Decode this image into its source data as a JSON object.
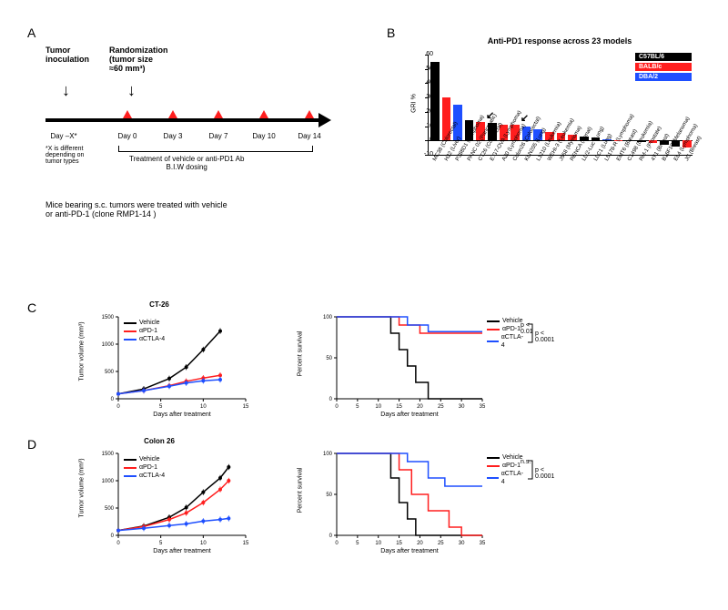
{
  "panelA": {
    "label": "A",
    "tumor_inoc": "Tumor\ninoculation",
    "randomization": "Randomization\n(tumor size\n≈60 mm³)",
    "days": [
      "Day –X*",
      "Day 0",
      "Day 3",
      "Day 7",
      "Day 10",
      "Day 14"
    ],
    "footnote": "*X is different\ndepending on\ntumor types",
    "treatment_text": "Treatment of vehicle or anti-PD1 Ab\nB.I.W dosing",
    "caption": "Mice bearing s.c. tumors were treated with vehicle\nor anti-PD-1 (clone RMP1-14 )"
  },
  "panelB": {
    "label": "B",
    "title": "Anti-PD1 response across 23 models",
    "ylabel": "GRI %",
    "ylim": [
      -10,
      60
    ],
    "ytick_step": 10,
    "legend": [
      {
        "label": "C57BL/6",
        "color": "#000000"
      },
      {
        "label": "BALB/c",
        "color": "#ff1e1e"
      },
      {
        "label": "DBA/2",
        "color": "#1e4fff"
      }
    ],
    "bars": [
      {
        "label": "MC38 (Colorectal)",
        "value": 55,
        "color": "#000000"
      },
      {
        "label": "H22 (Liver)",
        "value": 30,
        "color": "#ff1e1e"
      },
      {
        "label": "P388D1 (Lymphoma)",
        "value": 25,
        "color": "#1e4fff"
      },
      {
        "label": "PANC 02 (Pancreatic)",
        "value": 14,
        "color": "#000000"
      },
      {
        "label": "CT26 (Colorectal)",
        "value": 13,
        "color": "#ff1e1e",
        "arrow": true
      },
      {
        "label": "E.G7-OVA (Lymphoma)",
        "value": 12,
        "color": "#000000"
      },
      {
        "label": "A20 (Lymphoma)",
        "value": 11,
        "color": "#ff1e1e"
      },
      {
        "label": "Colon26 (Colorectal)",
        "value": 11,
        "color": "#ff1e1e",
        "arrow": true
      },
      {
        "label": "KLN205 (Lung)",
        "value": 10,
        "color": "#1e4fff"
      },
      {
        "label": "L1210 (Leukemia)",
        "value": 8,
        "color": "#1e4fff"
      },
      {
        "label": "WEHI-3 (Leukemia)",
        "value": 6,
        "color": "#ff1e1e"
      },
      {
        "label": "J558 (Myeloma)",
        "value": 5,
        "color": "#ff1e1e"
      },
      {
        "label": "RENCA (Renal)",
        "value": 4,
        "color": "#ff1e1e"
      },
      {
        "label": "LL/2-Luc (Lung)",
        "value": 3,
        "color": "#000000"
      },
      {
        "label": "LLC1 (Lung)",
        "value": 2,
        "color": "#000000"
      },
      {
        "label": "L5178-R (Lymphoma)",
        "value": 1,
        "color": "#1e4fff"
      },
      {
        "label": "EMT6 (Breast)",
        "value": 0.5,
        "color": "#ff1e1e"
      },
      {
        "label": "C1498 (Leukemia)",
        "value": 0,
        "color": "#000000"
      },
      {
        "label": "RM-1 (Prostate)",
        "value": -1,
        "color": "#000000"
      },
      {
        "label": "4T1 (Breast)",
        "value": -1.5,
        "color": "#ff1e1e"
      },
      {
        "label": "B16F10 (Melanoma)",
        "value": -3,
        "color": "#000000"
      },
      {
        "label": "EL4 (Lymphoma)",
        "value": -4,
        "color": "#000000"
      },
      {
        "label": "JC (Breast)",
        "value": -5,
        "color": "#ff1e1e"
      }
    ]
  },
  "panelC": {
    "label": "C",
    "title": "CT-26",
    "growth": {
      "ylabel": "Tumor volume (mm³)",
      "xlabel": "Days after treatment",
      "ylim": [
        0,
        1500
      ],
      "ytick_step": 500,
      "xlim": [
        0,
        15
      ],
      "xtick_step": 5,
      "series": [
        {
          "name": "Vehicle",
          "color": "#000000",
          "points": [
            [
              0,
              90
            ],
            [
              3,
              180
            ],
            [
              6,
              370
            ],
            [
              8,
              580
            ],
            [
              10,
              900
            ],
            [
              12,
              1240
            ]
          ]
        },
        {
          "name": "αPD-1",
          "color": "#ff1e1e",
          "points": [
            [
              0,
              90
            ],
            [
              3,
              150
            ],
            [
              6,
              240
            ],
            [
              8,
              320
            ],
            [
              10,
              380
            ],
            [
              12,
              430
            ]
          ]
        },
        {
          "name": "αCTLA-4",
          "color": "#1e4fff",
          "points": [
            [
              0,
              90
            ],
            [
              3,
              150
            ],
            [
              6,
              230
            ],
            [
              8,
              290
            ],
            [
              10,
              330
            ],
            [
              12,
              350
            ]
          ]
        }
      ]
    },
    "survival": {
      "ylabel": "Percent survival",
      "xlabel": "Days after treatment",
      "ylim": [
        0,
        100
      ],
      "ytick_step": 50,
      "xlim": [
        0,
        35
      ],
      "xtick_step": 5,
      "series": [
        {
          "name": "Vehicle",
          "color": "#000000",
          "steps": [
            [
              0,
              100
            ],
            [
              13,
              100
            ],
            [
              13,
              80
            ],
            [
              15,
              80
            ],
            [
              15,
              60
            ],
            [
              17,
              60
            ],
            [
              17,
              40
            ],
            [
              19,
              40
            ],
            [
              19,
              20
            ],
            [
              22,
              20
            ],
            [
              22,
              0
            ],
            [
              35,
              0
            ]
          ]
        },
        {
          "name": "αPD-1",
          "color": "#ff1e1e",
          "steps": [
            [
              0,
              100
            ],
            [
              15,
              100
            ],
            [
              15,
              90
            ],
            [
              20,
              90
            ],
            [
              20,
              80
            ],
            [
              35,
              80
            ]
          ]
        },
        {
          "name": "αCTLA-4",
          "color": "#1e4fff",
          "steps": [
            [
              0,
              100
            ],
            [
              17,
              100
            ],
            [
              17,
              90
            ],
            [
              22,
              90
            ],
            [
              22,
              82
            ],
            [
              35,
              82
            ]
          ]
        }
      ],
      "pvals": {
        "pd1": "p < 0.01",
        "ctla4": "p < 0.0001"
      }
    }
  },
  "panelD": {
    "label": "D",
    "title": "Colon 26",
    "growth": {
      "ylabel": "Tumor volume (mm³)",
      "xlabel": "Days after treatment",
      "ylim": [
        0,
        1500
      ],
      "ytick_step": 500,
      "xlim": [
        0,
        15
      ],
      "xtick_step": 5,
      "series": [
        {
          "name": "Vehicle",
          "color": "#000000",
          "points": [
            [
              0,
              90
            ],
            [
              3,
              170
            ],
            [
              6,
              330
            ],
            [
              8,
              510
            ],
            [
              10,
              790
            ],
            [
              12,
              1050
            ],
            [
              13,
              1250
            ]
          ]
        },
        {
          "name": "αPD-1",
          "color": "#ff1e1e",
          "points": [
            [
              0,
              90
            ],
            [
              3,
              160
            ],
            [
              6,
              290
            ],
            [
              8,
              410
            ],
            [
              10,
              600
            ],
            [
              12,
              840
            ],
            [
              13,
              1000
            ]
          ]
        },
        {
          "name": "αCTLA-4",
          "color": "#1e4fff",
          "points": [
            [
              0,
              90
            ],
            [
              3,
              130
            ],
            [
              6,
              180
            ],
            [
              8,
              210
            ],
            [
              10,
              260
            ],
            [
              12,
              290
            ],
            [
              13,
              310
            ]
          ]
        }
      ]
    },
    "survival": {
      "ylabel": "Percent survival",
      "xlabel": "Days after treatment",
      "ylim": [
        0,
        100
      ],
      "ytick_step": 50,
      "xlim": [
        0,
        35
      ],
      "xtick_step": 5,
      "series": [
        {
          "name": "Vehicle",
          "color": "#000000",
          "steps": [
            [
              0,
              100
            ],
            [
              13,
              100
            ],
            [
              13,
              70
            ],
            [
              15,
              70
            ],
            [
              15,
              40
            ],
            [
              17,
              40
            ],
            [
              17,
              20
            ],
            [
              19,
              20
            ],
            [
              19,
              0
            ],
            [
              35,
              0
            ]
          ]
        },
        {
          "name": "αPD-1",
          "color": "#ff1e1e",
          "steps": [
            [
              0,
              100
            ],
            [
              15,
              100
            ],
            [
              15,
              80
            ],
            [
              18,
              80
            ],
            [
              18,
              50
            ],
            [
              22,
              50
            ],
            [
              22,
              30
            ],
            [
              27,
              30
            ],
            [
              27,
              10
            ],
            [
              30,
              10
            ],
            [
              30,
              0
            ],
            [
              35,
              0
            ]
          ]
        },
        {
          "name": "αCTLA-4",
          "color": "#1e4fff",
          "steps": [
            [
              0,
              100
            ],
            [
              17,
              100
            ],
            [
              17,
              90
            ],
            [
              22,
              90
            ],
            [
              22,
              70
            ],
            [
              26,
              70
            ],
            [
              26,
              60
            ],
            [
              35,
              60
            ]
          ]
        }
      ],
      "pvals": {
        "pd1": "n.s.",
        "ctla4": "p < 0.0001"
      }
    }
  },
  "colors": {
    "vehicle": "#000000",
    "pd1": "#ff1e1e",
    "ctla4": "#1e4fff"
  }
}
